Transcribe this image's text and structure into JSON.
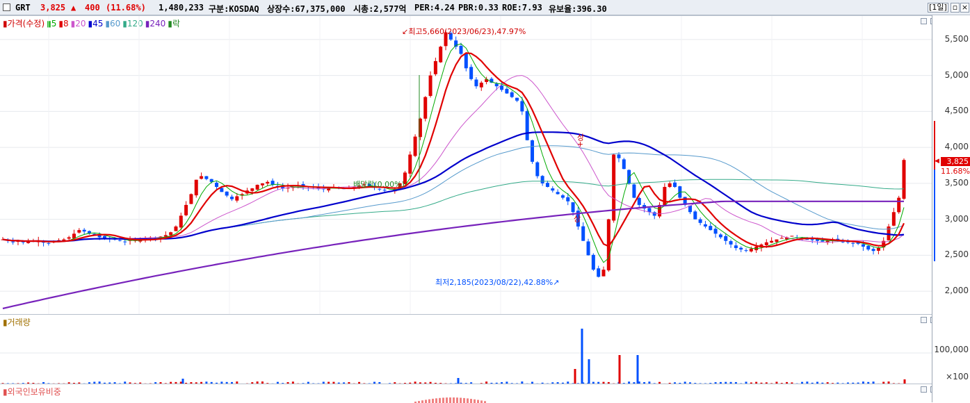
{
  "header": {
    "name": "GRT",
    "price": "3,825",
    "change_arrow": "▲",
    "change": "400",
    "change_pct": "(11.68%)",
    "volume": "1,480,233",
    "market": "구분:KOSDAQ",
    "shares": "상장수:67,375,000",
    "market_cap": "시총:2,577억",
    "per": "PER:4.24",
    "pbr": "PBR:0.33",
    "roe": "ROE:7.93",
    "reserve": "유보율:396.30",
    "period_button": "[1일]",
    "colors": {
      "up": "#e00000",
      "down": "#0050ff"
    }
  },
  "price_panel": {
    "legend": [
      {
        "text": "가격(수정)",
        "color": "#d00000"
      },
      {
        "text": "5",
        "color": "#00aa00"
      },
      {
        "text": "8",
        "color": "#e00000"
      },
      {
        "text": "20",
        "color": "#cc55cc"
      },
      {
        "text": "45",
        "color": "#0000cc"
      },
      {
        "text": "60",
        "color": "#5599cc"
      },
      {
        "text": "120",
        "color": "#33aa88"
      },
      {
        "text": "240",
        "color": "#7722bb"
      },
      {
        "text": "락",
        "color": "#228822"
      }
    ],
    "annotations": {
      "high": "최고5,660(2023/06/23),47.97%",
      "low": "최저2,185(2023/08/22),42.88%",
      "ex_dividend": "배당락(0.00%)",
      "v1": "상",
      "v2": "상+"
    },
    "y_ticks": [
      "5,500",
      "5,000",
      "4,500",
      "4,000",
      "3,500",
      "3,000",
      "2,500",
      "2,000"
    ],
    "current_price_label": "3,825",
    "current_pct_label": "11.68%"
  },
  "volume_panel": {
    "legend": "거래량",
    "y_ticks": [
      "100,000",
      "×100"
    ]
  },
  "foreign_panel": {
    "legend": "외국인보유비중"
  },
  "chart_data": {
    "type": "candlestick",
    "price_range": [
      1750,
      5750
    ],
    "closes": [
      2720,
      2700,
      2690,
      2700,
      2680,
      2690,
      2700,
      2700,
      2680,
      2670,
      2690,
      2700,
      2720,
      2750,
      2800,
      2850,
      2830,
      2800,
      2780,
      2750,
      2740,
      2730,
      2720,
      2700,
      2690,
      2700,
      2710,
      2730,
      2740,
      2750,
      2740,
      2760,
      2780,
      2820,
      2900,
      3050,
      3200,
      3350,
      3550,
      3600,
      3560,
      3520,
      3450,
      3380,
      3330,
      3280,
      3320,
      3350,
      3400,
      3430,
      3480,
      3500,
      3520,
      3480,
      3450,
      3430,
      3440,
      3450,
      3470,
      3460,
      3450,
      3440,
      3430,
      3420,
      3430,
      3440,
      3430,
      3420,
      3440,
      3450,
      3470,
      3480,
      3460,
      3440,
      3420,
      3400,
      3380,
      3420,
      3500,
      3650,
      3900,
      4150,
      4400,
      4700,
      5000,
      5200,
      5400,
      5600,
      5500,
      5400,
      5300,
      5100,
      4950,
      4850,
      4900,
      4950,
      4900,
      4850,
      4800,
      4750,
      4700,
      4650,
      4500,
      4100,
      3800,
      3600,
      3500,
      3450,
      3400,
      3350,
      3300,
      3250,
      3100,
      2900,
      2700,
      2500,
      2300,
      2200,
      2300,
      3000,
      3900,
      3850,
      3700,
      3500,
      3300,
      3200,
      3150,
      3100,
      3050,
      3200,
      3450,
      3500,
      3450,
      3300,
      3200,
      3100,
      3000,
      2950,
      2900,
      2850,
      2800,
      2750,
      2700,
      2650,
      2600,
      2580,
      2570,
      2590,
      2620,
      2650,
      2680,
      2700,
      2720,
      2740,
      2750,
      2760,
      2750,
      2740,
      2720,
      2710,
      2700,
      2690,
      2700,
      2710,
      2700,
      2690,
      2680,
      2670,
      2660,
      2620,
      2580,
      2560,
      2600,
      2700,
      2900,
      3100,
      3300,
      3825
    ],
    "ma": {
      "240": [
        1760,
        3250
      ],
      "45_shape": "smoothed"
    },
    "volume_scale": "×100",
    "volume_bars": [
      {
        "x": 837,
        "h": 80,
        "color": "#0050ff"
      },
      {
        "x": 891,
        "h": 42,
        "color": "#e00000"
      },
      {
        "x": 917,
        "h": 42,
        "color": "#0050ff"
      },
      {
        "x": 847,
        "h": 36,
        "color": "#0050ff"
      },
      {
        "x": 827,
        "h": 22,
        "color": "#e00000"
      },
      {
        "x": 263,
        "h": 8,
        "color": "#0050ff"
      },
      {
        "x": 659,
        "h": 9,
        "color": "#0050ff"
      },
      {
        "x": 1301,
        "h": 7,
        "color": "#e00000"
      }
    ]
  }
}
